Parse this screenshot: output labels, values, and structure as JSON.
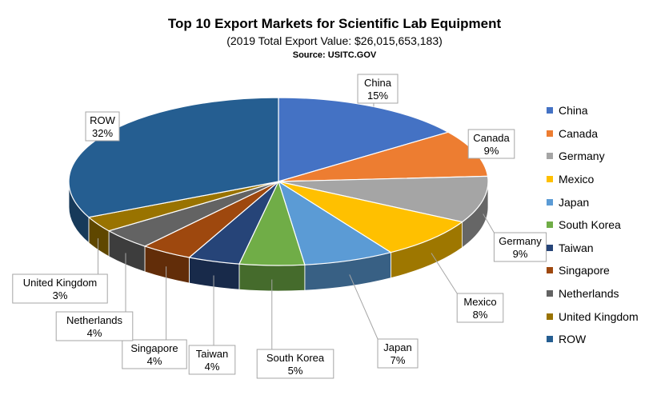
{
  "chart_data": {
    "type": "pie",
    "title": "Top 10 Export Markets for Scientific Lab Equipment",
    "subtitle": "(2019 Total Export Value: $26,015,653,183)",
    "source": "Source: USITC.GOV",
    "legend_position": "right",
    "slices": [
      {
        "name": "China",
        "value": 15,
        "label": "15%",
        "color": "#4472C4"
      },
      {
        "name": "Canada",
        "value": 9,
        "label": "9%",
        "color": "#ED7D31"
      },
      {
        "name": "Germany",
        "value": 9,
        "label": "9%",
        "color": "#A5A5A5"
      },
      {
        "name": "Mexico",
        "value": 8,
        "label": "8%",
        "color": "#FFC000"
      },
      {
        "name": "Japan",
        "value": 7,
        "label": "7%",
        "color": "#5B9BD5"
      },
      {
        "name": "South Korea",
        "value": 5,
        "label": "5%",
        "color": "#70AD47"
      },
      {
        "name": "Taiwan",
        "value": 4,
        "label": "4%",
        "color": "#264478"
      },
      {
        "name": "Singapore",
        "value": 4,
        "label": "4%",
        "color": "#9E480E"
      },
      {
        "name": "Netherlands",
        "value": 4,
        "label": "4%",
        "color": "#636363"
      },
      {
        "name": "United Kingdom",
        "value": 3,
        "label": "3%",
        "color": "#997300"
      },
      {
        "name": "ROW",
        "value": 32,
        "label": "32%",
        "color": "#255E91"
      }
    ]
  }
}
